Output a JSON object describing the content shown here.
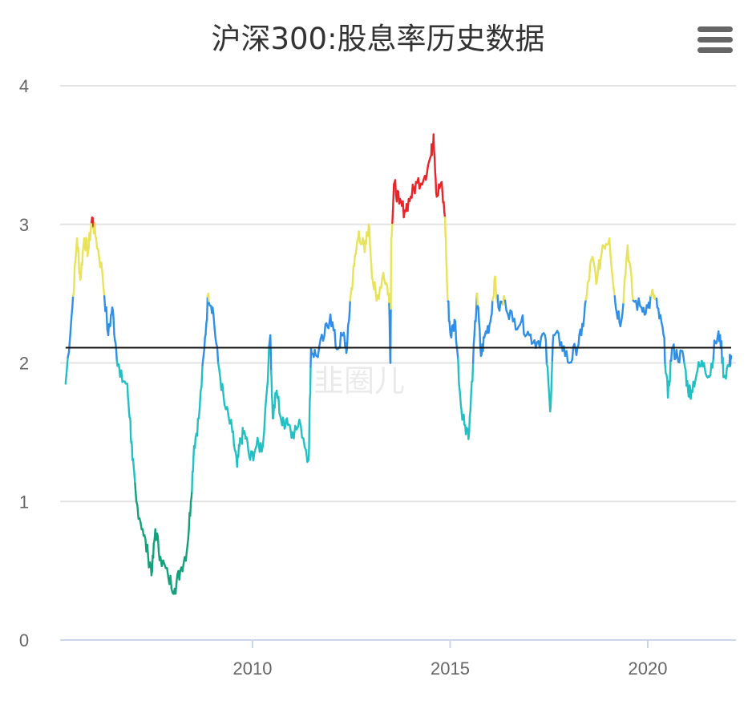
{
  "chart_data": {
    "type": "line",
    "title": "沪深300:股息率历史数据",
    "watermark": "韭圈儿",
    "xlabel": "",
    "ylabel": "",
    "xlim": [
      2005.0,
      2022.2
    ],
    "ylim": [
      0,
      4
    ],
    "x_ticks": [
      2010,
      2015,
      2020
    ],
    "x_tick_labels": [
      "2010",
      "2015",
      "2020"
    ],
    "y_ticks": [
      0,
      1,
      2,
      3,
      4
    ],
    "y_tick_labels": [
      "0",
      "1",
      "2",
      "3",
      "4"
    ],
    "grid": true,
    "reference_line": 2.11,
    "color_bands": [
      {
        "max": 1.1,
        "color": "#14a07a"
      },
      {
        "max": 2.0,
        "color": "#22c0c2"
      },
      {
        "max": 2.45,
        "color": "#2f8fe6"
      },
      {
        "max": 3.0,
        "color": "#e8e35a"
      },
      {
        "max": 99,
        "color": "#e8262a"
      }
    ],
    "series": [
      {
        "name": "股息率",
        "x": [
          2005.27,
          2005.44,
          2005.56,
          2005.64,
          2005.74,
          2005.84,
          2005.94,
          2006.04,
          2006.2,
          2006.35,
          2006.45,
          2006.55,
          2006.65,
          2006.82,
          2006.9,
          2006.96,
          2007.06,
          2007.22,
          2007.36,
          2007.46,
          2007.54,
          2007.67,
          2007.87,
          2008.03,
          2008.17,
          2008.34,
          2008.44,
          2008.52,
          2008.64,
          2008.78,
          2008.88,
          2008.99,
          2009.13,
          2009.29,
          2009.49,
          2009.61,
          2009.7,
          2009.8,
          2009.94,
          2010.1,
          2010.26,
          2010.45,
          2010.51,
          2010.61,
          2010.75,
          2010.87,
          2011.01,
          2011.22,
          2011.42,
          2011.48,
          2011.62,
          2011.82,
          2011.97,
          2012.13,
          2012.29,
          2012.39,
          2012.47,
          2012.57,
          2012.69,
          2012.84,
          2012.94,
          2013.04,
          2013.14,
          2013.31,
          2013.45,
          2013.49,
          2013.51,
          2013.59,
          2013.71,
          2013.85,
          2014.0,
          2014.16,
          2014.36,
          2014.52,
          2014.58,
          2014.66,
          2014.77,
          2014.87,
          2014.93,
          2015.01,
          2015.13,
          2015.27,
          2015.38,
          2015.48,
          2015.58,
          2015.68,
          2015.78,
          2015.88,
          2016.02,
          2016.12,
          2016.22,
          2016.39,
          2016.59,
          2016.8,
          2017.0,
          2017.2,
          2017.4,
          2017.53,
          2017.61,
          2017.81,
          2018.01,
          2018.17,
          2018.32,
          2018.46,
          2018.58,
          2018.72,
          2018.86,
          2019.03,
          2019.19,
          2019.33,
          2019.49,
          2019.63,
          2019.84,
          2020.0,
          2020.14,
          2020.24,
          2020.4,
          2020.51,
          2020.61,
          2020.75,
          2020.9,
          2021.02,
          2021.1,
          2021.26,
          2021.42,
          2021.56,
          2021.71,
          2021.83,
          2021.93,
          2022.07,
          2022.11
        ],
        "y": [
          1.85,
          2.4,
          2.9,
          2.6,
          2.9,
          2.8,
          3.05,
          2.9,
          2.65,
          2.2,
          2.4,
          2.1,
          1.9,
          1.85,
          1.6,
          1.3,
          1.0,
          0.8,
          0.6,
          0.5,
          0.8,
          0.6,
          0.45,
          0.37,
          0.5,
          0.65,
          1.0,
          1.4,
          1.6,
          2.1,
          2.5,
          2.4,
          2.0,
          1.7,
          1.5,
          1.25,
          1.45,
          1.5,
          1.3,
          1.4,
          1.4,
          2.2,
          1.6,
          1.8,
          1.55,
          1.6,
          1.5,
          1.55,
          1.3,
          2.1,
          2.05,
          2.2,
          2.35,
          2.1,
          2.2,
          2.1,
          2.45,
          2.7,
          2.95,
          2.8,
          3.0,
          2.6,
          2.45,
          2.65,
          2.5,
          2.0,
          2.9,
          3.3,
          3.15,
          3.1,
          3.2,
          3.3,
          3.35,
          3.5,
          3.65,
          3.2,
          3.3,
          3.05,
          2.5,
          2.2,
          2.3,
          1.7,
          1.55,
          1.5,
          2.0,
          2.5,
          2.05,
          2.2,
          2.3,
          2.6,
          2.4,
          2.45,
          2.3,
          2.3,
          2.2,
          2.15,
          2.2,
          1.65,
          2.2,
          2.15,
          2.0,
          2.1,
          2.2,
          2.5,
          2.75,
          2.6,
          2.85,
          2.9,
          2.4,
          2.3,
          2.85,
          2.45,
          2.4,
          2.4,
          2.5,
          2.4,
          2.2,
          1.75,
          2.1,
          2.05,
          2.05,
          1.8,
          1.8,
          1.95,
          2.0,
          1.9,
          2.15,
          2.2,
          1.9,
          2.0,
          2.05
        ]
      }
    ]
  },
  "menu": {
    "icon": "hamburger-menu-icon"
  }
}
